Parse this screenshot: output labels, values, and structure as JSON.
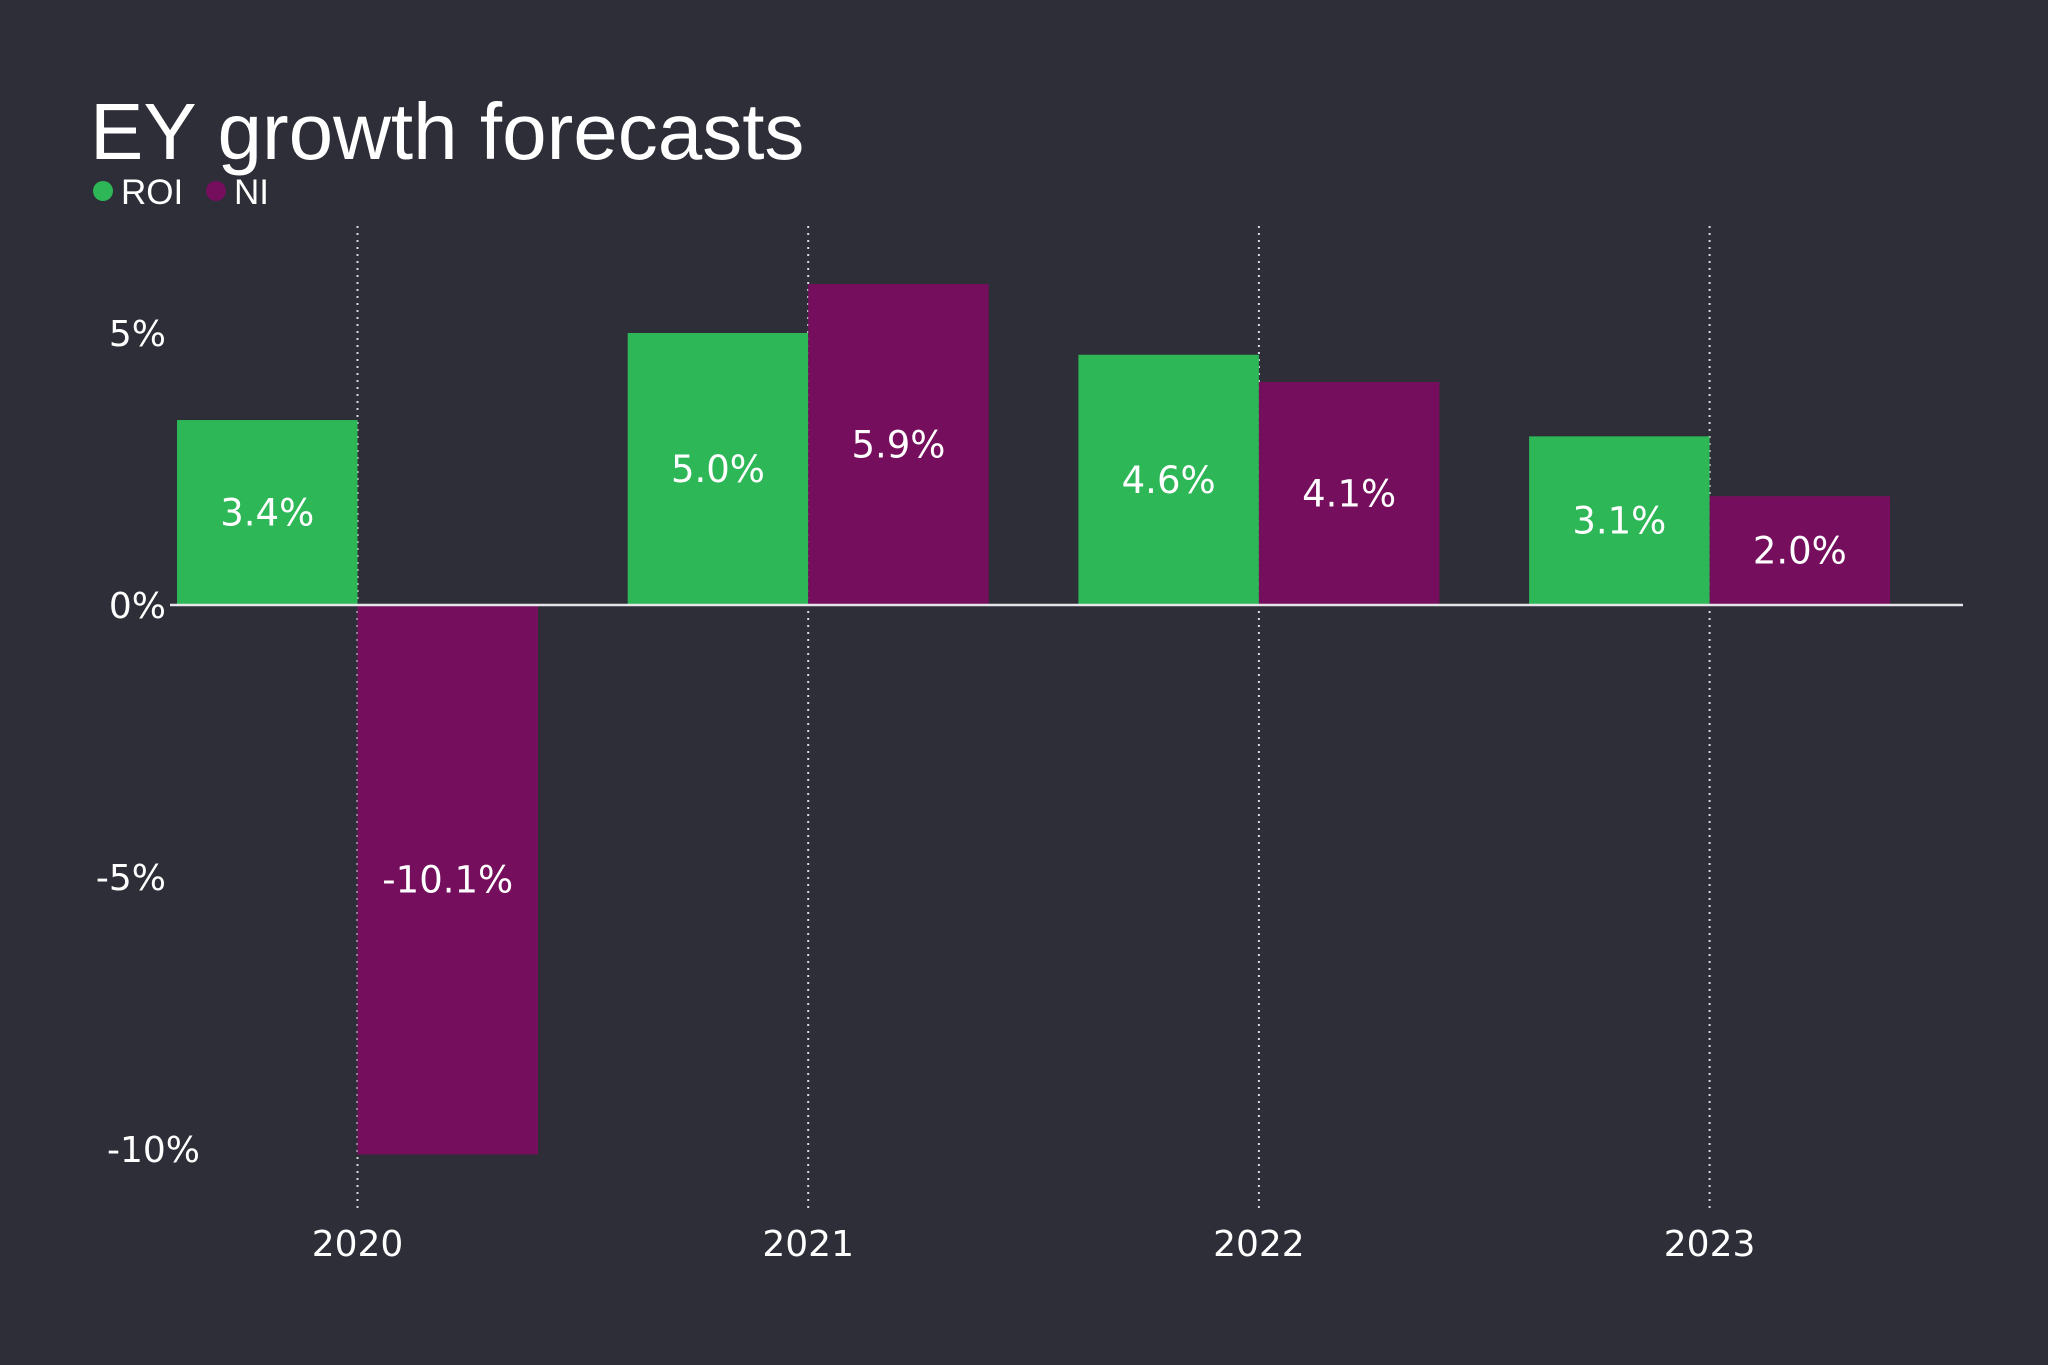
{
  "chart_data": {
    "type": "bar",
    "title": "EY growth forecasts",
    "xlabel": "",
    "ylabel": "",
    "categories": [
      "2020",
      "2021",
      "2022",
      "2023"
    ],
    "series": [
      {
        "name": "ROI",
        "color": "#2DB757",
        "values": [
          3.4,
          5.0,
          4.6,
          3.1
        ],
        "labels": [
          "3.4%",
          "5.0%",
          "4.6%",
          "3.1%"
        ]
      },
      {
        "name": "NI",
        "color": "#750E5C",
        "values": [
          -10.1,
          5.9,
          4.1,
          2.0
        ],
        "labels": [
          "-10.1%",
          "5.9%",
          "4.1%",
          "2.0%"
        ]
      }
    ],
    "yticks": [
      5,
      0,
      -5,
      -10
    ],
    "ytick_labels": [
      "5%",
      "0%",
      "-5%",
      "-10%"
    ],
    "ylim": [
      -10,
      5
    ],
    "grid": "vertical dotted lines at each category",
    "legend": {
      "placement": "top-left",
      "entries": [
        "ROI",
        "NI"
      ]
    }
  },
  "colors": {
    "background": "#2E2E38",
    "text": "#FFFFFF"
  }
}
